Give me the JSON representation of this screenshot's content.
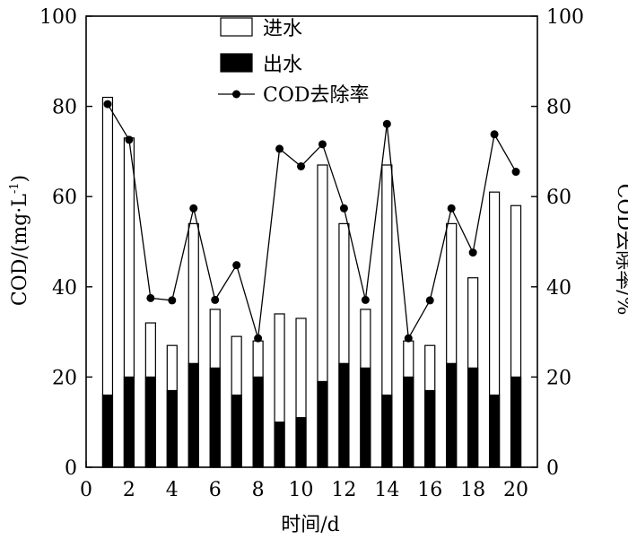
{
  "chart_data": {
    "type": "bar",
    "x": [
      1,
      2,
      3,
      4,
      5,
      6,
      7,
      8,
      9,
      10,
      11,
      12,
      13,
      14,
      15,
      16,
      17,
      18,
      19,
      20
    ],
    "series": [
      {
        "name": "进水",
        "type": "bar",
        "axis": "left",
        "color": "#ffffff",
        "values": [
          82,
          73,
          32,
          27,
          54,
          35,
          29,
          28,
          34,
          33,
          67,
          54,
          35,
          67,
          28,
          27,
          54,
          42,
          61,
          58
        ]
      },
      {
        "name": "出水",
        "type": "bar",
        "axis": "left",
        "color": "#000000",
        "values": [
          16,
          20,
          20,
          17,
          23,
          22,
          16,
          20,
          10,
          11,
          19,
          23,
          22,
          16,
          20,
          17,
          23,
          22,
          16,
          20
        ]
      },
      {
        "name": "COD去除率",
        "type": "line",
        "axis": "right",
        "color": "#000000",
        "values": [
          80.5,
          72.6,
          37.5,
          37.0,
          57.4,
          37.1,
          44.8,
          28.6,
          70.6,
          66.7,
          71.6,
          57.4,
          37.1,
          76.1,
          28.6,
          37.0,
          57.4,
          47.6,
          73.8,
          65.5
        ]
      }
    ],
    "xlabel": "时间/d",
    "ylabel": "COD/(mg·L",
    "ylabel_sup": "-1",
    "ylabel_close": ")",
    "y2label": "COD去除率/%",
    "xlim": [
      0,
      21
    ],
    "ylim": [
      0,
      100
    ],
    "y2lim": [
      0,
      100
    ],
    "xticks": [
      0,
      2,
      4,
      6,
      8,
      10,
      12,
      14,
      16,
      18,
      20
    ],
    "yticks": [
      0,
      20,
      40,
      60,
      80,
      100
    ],
    "y2ticks": [
      0,
      20,
      40,
      60,
      80,
      100
    ],
    "legend": [
      "进水",
      "出水",
      "COD去除率"
    ],
    "legend_position": "top-center",
    "grid": false
  }
}
